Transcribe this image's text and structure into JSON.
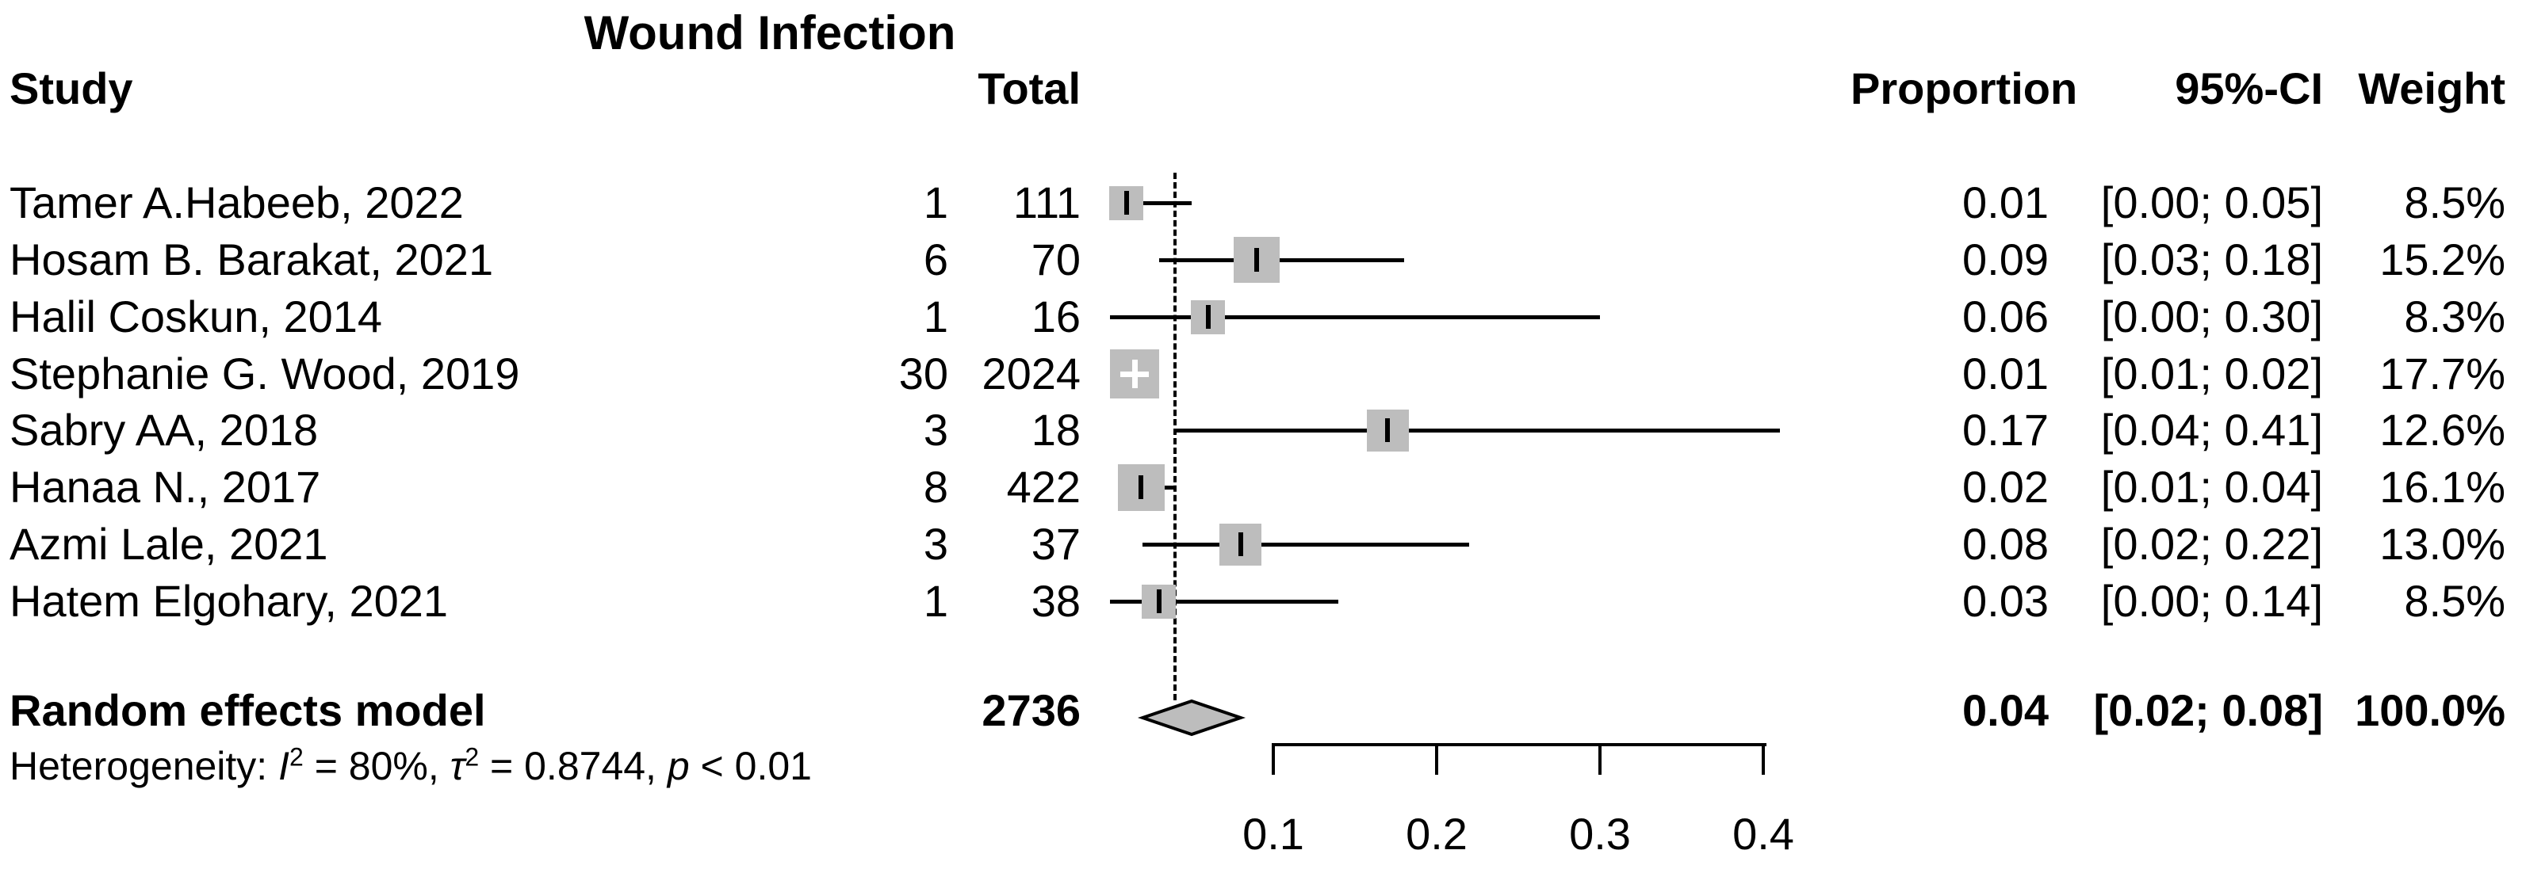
{
  "title": "Wound Infection",
  "headers": {
    "study": "Study",
    "total": "Total",
    "proportion": "Proportion",
    "ci": "95%-CI",
    "weight": "Weight"
  },
  "colors": {
    "background": "#ffffff",
    "text": "#000000",
    "line": "#000000",
    "square_fill": "#bdbdbd",
    "diamond_fill": "#bdbdbd",
    "diamond_border": "#000000"
  },
  "chart_data": {
    "type": "scatter",
    "subtype": "forest-plot-proportions",
    "title": "Wound Infection",
    "xlabel": "",
    "xlim": [
      0,
      0.45
    ],
    "x_ticks": [
      0.1,
      0.2,
      0.3,
      0.4
    ],
    "x_tick_labels": [
      "0.1",
      "0.2",
      "0.3",
      "0.4"
    ],
    "pooled_line_value": 0.04,
    "studies": [
      {
        "label": "Tamer A.Habeeb, 2022",
        "events": "1",
        "total": "111",
        "proportion": "0.01",
        "ci": "[0.00; 0.05]",
        "weight": "8.5%",
        "weight_value": 8.5,
        "est": 0.01,
        "lower": 0.0,
        "upper": 0.05,
        "marker": "black-tick"
      },
      {
        "label": "Hosam B. Barakat, 2021",
        "events": "6",
        "total": "70",
        "proportion": "0.09",
        "ci": "[0.03; 0.18]",
        "weight": "15.2%",
        "weight_value": 15.2,
        "est": 0.09,
        "lower": 0.03,
        "upper": 0.18,
        "marker": "black-tick"
      },
      {
        "label": "Halil Coskun, 2014",
        "events": "1",
        "total": "16",
        "proportion": "0.06",
        "ci": "[0.00; 0.30]",
        "weight": "8.3%",
        "weight_value": 8.3,
        "est": 0.06,
        "lower": 0.0,
        "upper": 0.3,
        "marker": "black-tick"
      },
      {
        "label": "Stephanie G. Wood, 2019",
        "events": "30",
        "total": "2024",
        "proportion": "0.01",
        "ci": "[0.01; 0.02]",
        "weight": "17.7%",
        "weight_value": 17.7,
        "est": 0.015,
        "lower": 0.01,
        "upper": 0.02,
        "marker": "white-cross"
      },
      {
        "label": "Sabry AA, 2018",
        "events": "3",
        "total": "18",
        "proportion": "0.17",
        "ci": "[0.04; 0.41]",
        "weight": "12.6%",
        "weight_value": 12.6,
        "est": 0.17,
        "lower": 0.04,
        "upper": 0.41,
        "marker": "black-tick"
      },
      {
        "label": "Hanaa N., 2017",
        "events": "8",
        "total": "422",
        "proportion": "0.02",
        "ci": "[0.01; 0.04]",
        "weight": "16.1%",
        "weight_value": 16.1,
        "est": 0.019,
        "lower": 0.01,
        "upper": 0.04,
        "marker": "black-tick"
      },
      {
        "label": "Azmi Lale, 2021",
        "events": "3",
        "total": "37",
        "proportion": "0.08",
        "ci": "[0.02; 0.22]",
        "weight": "13.0%",
        "weight_value": 13.0,
        "est": 0.08,
        "lower": 0.02,
        "upper": 0.22,
        "marker": "black-tick"
      },
      {
        "label": "Hatem Elgohary, 2021",
        "events": "1",
        "total": "38",
        "proportion": "0.03",
        "ci": "[0.00; 0.14]",
        "weight": "8.5%",
        "weight_value": 8.5,
        "est": 0.03,
        "lower": 0.0,
        "upper": 0.14,
        "marker": "black-tick"
      }
    ],
    "overall": {
      "label": "Random effects model",
      "total": "2736",
      "proportion": "0.04",
      "ci": "[0.02; 0.08]",
      "weight": "100.0%",
      "est": 0.04,
      "lower": 0.02,
      "upper": 0.08
    },
    "heterogeneity_text": "Heterogeneity: I2 = 80%, t2 = 0.8744, p < 0.01",
    "heterogeneity_segments": [
      {
        "text": "Heterogeneity: "
      },
      {
        "text": "I",
        "italic": true
      },
      {
        "text": "2",
        "sup": true
      },
      {
        "text": " = 80%, "
      },
      {
        "text": "τ",
        "italic": true
      },
      {
        "text": "2",
        "sup": true
      },
      {
        "text": " = 0.8744, "
      },
      {
        "text": "p",
        "italic": true
      },
      {
        "text": " < 0.01"
      }
    ]
  }
}
